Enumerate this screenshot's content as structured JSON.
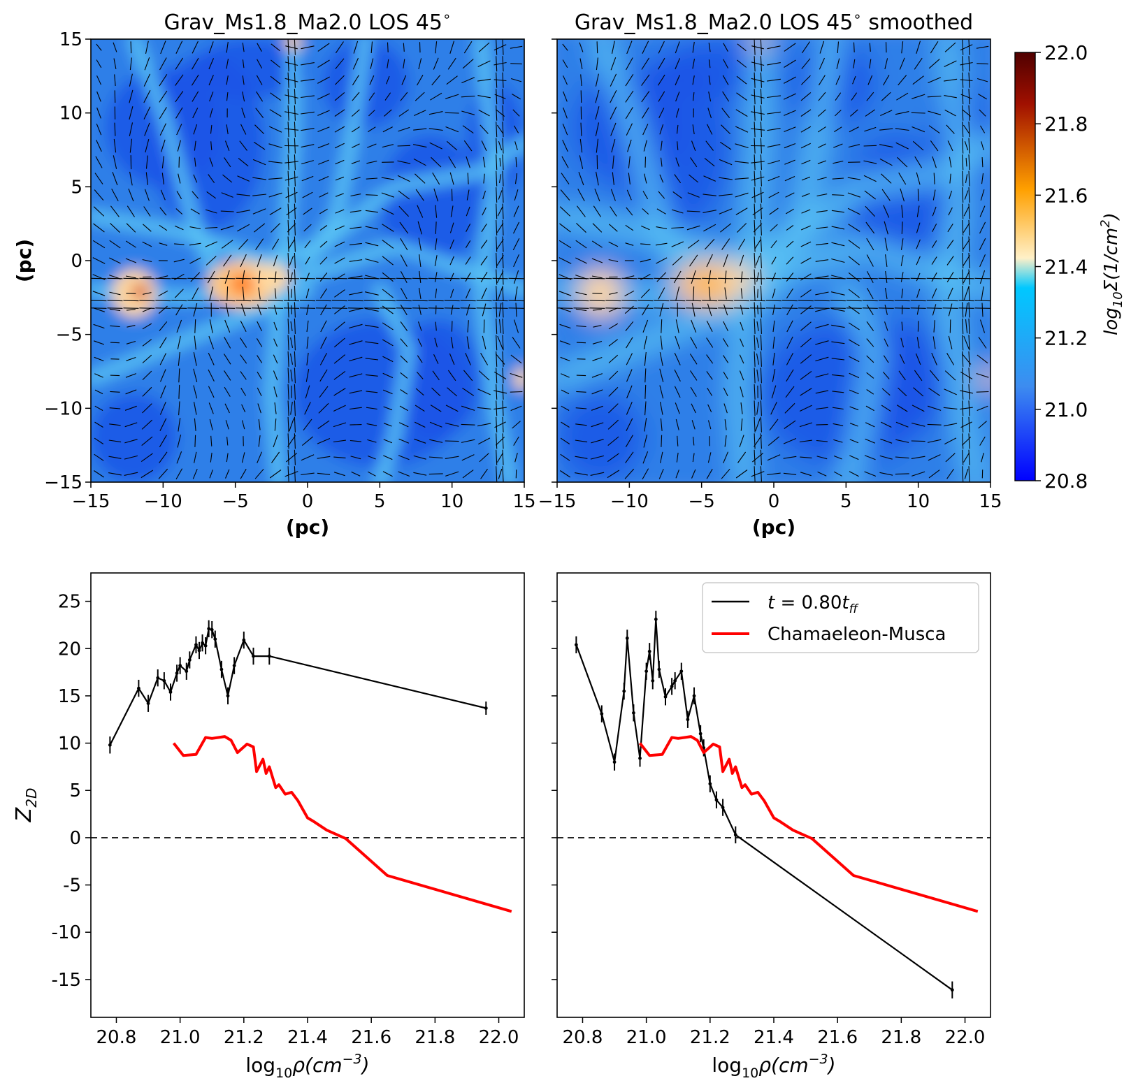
{
  "chart_data": [
    {
      "type": "heatmap",
      "title": "Grav_Ms1.8_Ma2.0 LOS 45$^{\\circ}$",
      "title_main": "Grav_Ms1.8_Ma2.0 LOS 45",
      "title_sup": "∘",
      "title_suffix": "",
      "xlabel": "(pc)",
      "ylabel": "(pc)",
      "xlim": [
        -15,
        15
      ],
      "ylim": [
        -15,
        15
      ],
      "xticks": [
        "−15",
        "−10",
        "−5",
        "0",
        "5",
        "10",
        "15"
      ],
      "yticks": [
        "−15",
        "−10",
        "−5",
        "0",
        "5",
        "10",
        "15"
      ],
      "overlay": "magnetic field orientation segments",
      "smoothed": false
    },
    {
      "type": "heatmap",
      "title": "Grav_Ms1.8_Ma2.0 LOS 45$^{\\circ}$ smoothed",
      "title_main": "Grav_Ms1.8_Ma2.0 LOS 45",
      "title_sup": "∘",
      "title_suffix": " smoothed",
      "xlabel": "(pc)",
      "xlim": [
        -15,
        15
      ],
      "ylim": [
        -15,
        15
      ],
      "xticks": [
        "−15",
        "−10",
        "−5",
        "0",
        "5",
        "10",
        "15"
      ],
      "overlay": "magnetic field orientation segments",
      "smoothed": true
    },
    {
      "type": "colorbar",
      "label_main": "log",
      "label_sub": "10",
      "label_rest": "Σ(1/cm",
      "label_sup": "2",
      "label_end": ")",
      "range": [
        20.8,
        22.0
      ],
      "ticks": [
        "22.0",
        "21.8",
        "21.6",
        "21.4",
        "21.2",
        "21.0",
        "20.8"
      ],
      "colormap": [
        "#0000ff",
        "#3d8cf0",
        "#00c8ff",
        "#fff0c8",
        "#ffa000",
        "#a01000",
        "#500000"
      ]
    },
    {
      "type": "line",
      "xlabel": "log10ρ(cm⁻³)",
      "ylabel": "Z2D",
      "xlim": [
        20.72,
        22.08
      ],
      "ylim": [
        -19,
        28
      ],
      "xticks": [
        "20.8",
        "21.0",
        "21.2",
        "21.4",
        "21.6",
        "21.8",
        "22.0"
      ],
      "yticks": [
        "25",
        "20",
        "15",
        "10",
        "5",
        "0",
        "-5",
        "-10",
        "-15"
      ],
      "hline": 0,
      "series": [
        {
          "name": "t=0.80t_ff",
          "color": "#000000",
          "x": [
            20.78,
            20.87,
            20.9,
            20.93,
            20.95,
            20.97,
            20.99,
            21.0,
            21.02,
            21.03,
            21.05,
            21.06,
            21.07,
            21.08,
            21.09,
            21.1,
            21.11,
            21.13,
            21.15,
            21.17,
            21.2,
            21.23,
            21.28,
            21.96
          ],
          "y": [
            9.8,
            15.8,
            14.2,
            16.9,
            16.6,
            15.4,
            17.4,
            18.2,
            17.6,
            18.8,
            20.4,
            19.8,
            20.6,
            20.3,
            22.1,
            22.0,
            21.0,
            17.8,
            15.0,
            18.2,
            20.9,
            19.2,
            19.2,
            13.7
          ],
          "err": [
            0.9,
            0.9,
            0.9,
            0.9,
            0.9,
            0.9,
            0.9,
            0.9,
            0.9,
            0.9,
            0.9,
            0.9,
            0.9,
            0.9,
            0.9,
            0.9,
            0.9,
            0.9,
            0.9,
            0.9,
            0.9,
            0.9,
            0.9,
            0.7
          ]
        },
        {
          "name": "Chamaeleon-Musca",
          "color": "#ff0000",
          "x": [
            20.98,
            21.01,
            21.05,
            21.08,
            21.1,
            21.12,
            21.14,
            21.16,
            21.18,
            21.21,
            21.23,
            21.24,
            21.26,
            21.27,
            21.28,
            21.3,
            21.31,
            21.33,
            21.35,
            21.37,
            21.4,
            21.42,
            21.46,
            21.5,
            21.52,
            21.65,
            22.04
          ],
          "y": [
            10.0,
            8.7,
            8.8,
            10.6,
            10.5,
            10.6,
            10.7,
            10.3,
            9.0,
            9.9,
            9.6,
            7.0,
            8.3,
            6.8,
            7.5,
            5.3,
            5.6,
            4.6,
            4.8,
            3.9,
            2.1,
            1.7,
            0.8,
            0.2,
            -0.1,
            -4.0,
            -7.8
          ]
        }
      ]
    },
    {
      "type": "line",
      "xlabel": "log10ρ(cm⁻³)",
      "xlim": [
        20.72,
        22.08
      ],
      "ylim": [
        -19,
        28
      ],
      "xticks": [
        "20.8",
        "21.0",
        "21.2",
        "21.4",
        "21.6",
        "21.8",
        "22.0"
      ],
      "hline": 0,
      "legend": "top-right",
      "series": [
        {
          "name": "t=0.80t_ff",
          "color": "#000000",
          "x": [
            20.78,
            20.86,
            20.9,
            20.93,
            20.94,
            20.96,
            20.98,
            21.0,
            21.01,
            21.02,
            21.03,
            21.04,
            21.06,
            21.08,
            21.09,
            21.11,
            21.13,
            21.15,
            21.17,
            21.18,
            21.2,
            21.22,
            21.24,
            21.28,
            21.96
          ],
          "y": [
            20.4,
            13.1,
            8.0,
            15.5,
            21.1,
            13.2,
            8.4,
            17.6,
            19.7,
            16.6,
            23.1,
            17.8,
            14.9,
            16.0,
            16.6,
            17.6,
            12.5,
            15.0,
            11.0,
            9.5,
            5.7,
            4.0,
            3.2,
            0.3,
            -16.1
          ],
          "err": [
            0.9,
            0.9,
            0.9,
            0.9,
            0.9,
            0.9,
            0.9,
            0.9,
            0.9,
            0.9,
            0.9,
            0.9,
            0.9,
            0.9,
            0.9,
            0.9,
            0.9,
            0.9,
            0.9,
            0.9,
            0.9,
            0.9,
            0.9,
            0.9,
            0.9
          ]
        },
        {
          "name": "Chamaeleon-Musca",
          "color": "#ff0000",
          "x": [
            20.98,
            21.01,
            21.05,
            21.08,
            21.1,
            21.12,
            21.14,
            21.16,
            21.18,
            21.21,
            21.23,
            21.24,
            21.26,
            21.27,
            21.28,
            21.3,
            21.31,
            21.33,
            21.35,
            21.37,
            21.4,
            21.42,
            21.46,
            21.5,
            21.52,
            21.65,
            22.04
          ],
          "y": [
            10.0,
            8.7,
            8.8,
            10.6,
            10.5,
            10.6,
            10.7,
            10.3,
            9.0,
            9.9,
            9.6,
            7.0,
            8.3,
            6.8,
            7.5,
            5.3,
            5.6,
            4.6,
            4.8,
            3.9,
            2.1,
            1.7,
            0.8,
            0.2,
            -0.1,
            -4.0,
            -7.8
          ]
        }
      ]
    }
  ],
  "legend": {
    "entry1_var": "t",
    "entry1_eq": " = 0.80",
    "entry1_t": "t",
    "entry1_sub": "ff",
    "entry2": "Chamaeleon-Musca"
  },
  "bottom_ylabel_main": "Z",
  "bottom_ylabel_sub": "2D",
  "bottom_xlabel_main": "log",
  "bottom_xlabel_sub": "10",
  "bottom_xlabel_rho": "ρ(cm",
  "bottom_xlabel_sup": "−3",
  "bottom_xlabel_end": ")"
}
